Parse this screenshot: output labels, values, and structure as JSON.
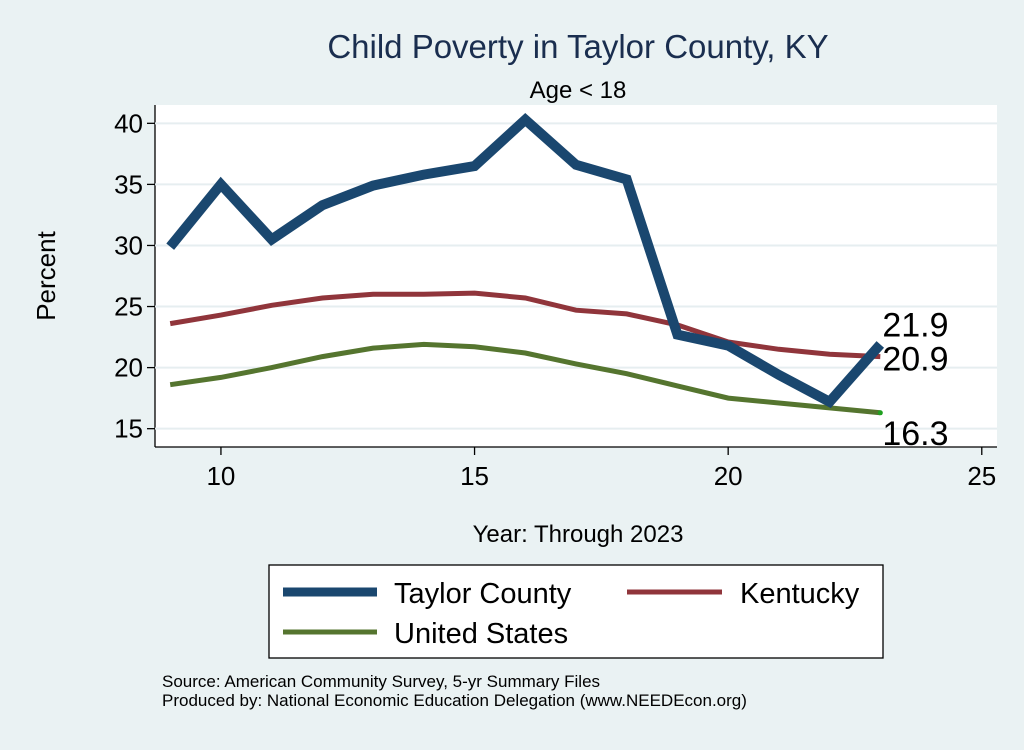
{
  "chart_data": {
    "type": "line",
    "title": "Child Poverty in Taylor County, KY",
    "subtitle": "Age < 18",
    "xlabel": "Year: Through 2023",
    "ylabel": "Percent",
    "xlim": [
      8.7,
      25.3
    ],
    "ylim": [
      13.5,
      41.5
    ],
    "xticks": [
      10,
      15,
      20,
      25
    ],
    "yticks": [
      15,
      20,
      25,
      30,
      35,
      40
    ],
    "grid": true,
    "legend_position": "bottom",
    "series": [
      {
        "name": "Taylor County",
        "color": "#1a476f",
        "x": [
          9,
          10,
          11,
          12,
          13,
          14,
          15,
          16,
          17,
          18,
          19,
          20,
          21,
          22,
          23
        ],
        "values": [
          29.9,
          35.0,
          30.5,
          33.3,
          34.9,
          35.8,
          36.5,
          40.3,
          36.6,
          35.4,
          22.7,
          21.8,
          19.4,
          17.2,
          21.9
        ],
        "end_label": "21.9"
      },
      {
        "name": "Kentucky",
        "color": "#90353b",
        "x": [
          9,
          10,
          11,
          12,
          13,
          14,
          15,
          16,
          17,
          18,
          19,
          20,
          21,
          22,
          23
        ],
        "values": [
          23.6,
          24.3,
          25.1,
          25.7,
          26.0,
          26.0,
          26.1,
          25.7,
          24.7,
          24.4,
          23.5,
          22.1,
          21.5,
          21.1,
          20.9
        ],
        "end_label": "20.9"
      },
      {
        "name": "United States",
        "color": "#55752f",
        "x": [
          9,
          10,
          11,
          12,
          13,
          14,
          15,
          16,
          17,
          18,
          19,
          20,
          21,
          22,
          23
        ],
        "values": [
          18.6,
          19.2,
          20.0,
          20.9,
          21.6,
          21.9,
          21.7,
          21.2,
          20.3,
          19.5,
          18.5,
          17.5,
          17.1,
          16.7,
          16.3
        ],
        "end_label": "16.3"
      }
    ]
  },
  "notes": {
    "source": "Source: American Community Survey, 5-yr Summary Files",
    "produced_by": "Produced by: National Economic Education Delegation (www.NEEDEcon.org)"
  }
}
